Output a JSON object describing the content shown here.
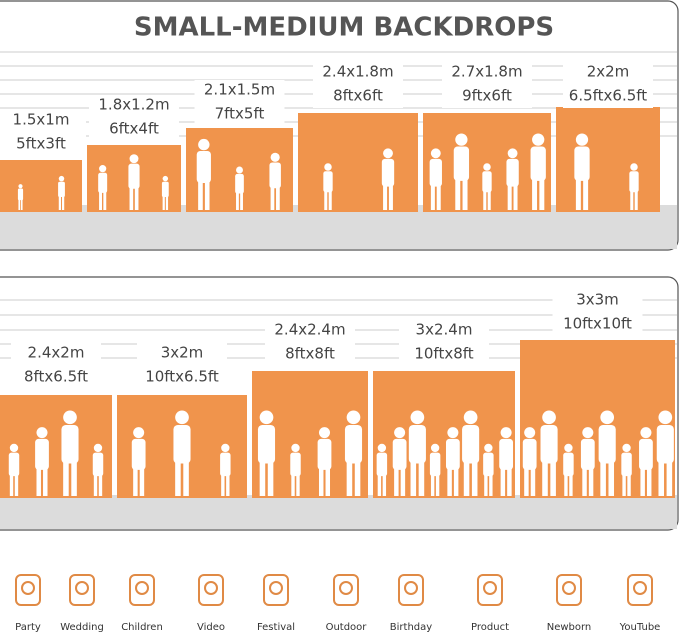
{
  "title": "SMALL-MEDIUM BACKDROPS",
  "panels": [
    {
      "backdrops": [
        {
          "metric": "1.5x1m",
          "imperial": "5ftx3ft"
        },
        {
          "metric": "1.8x1.2m",
          "imperial": "6ftx4ft"
        },
        {
          "metric": "2.1x1.5m",
          "imperial": "7ftx5ft"
        },
        {
          "metric": "2.4x1.8m",
          "imperial": "8ftx6ft"
        },
        {
          "metric": "2.7x1.8m",
          "imperial": "9ftx6ft"
        },
        {
          "metric": "2x2m",
          "imperial": "6.5ftx6.5ft"
        }
      ]
    },
    {
      "backdrops": [
        {
          "metric": "2.4x2m",
          "imperial": "8ftx6.5ft"
        },
        {
          "metric": "3x2m",
          "imperial": "10ftx6.5ft"
        },
        {
          "metric": "2.4x2.4m",
          "imperial": "8ftx8ft"
        },
        {
          "metric": "3x2.4m",
          "imperial": "10ftx8ft"
        },
        {
          "metric": "3x3m",
          "imperial": "10ftx10ft"
        }
      ]
    }
  ],
  "icons": [
    {
      "label": "Party"
    },
    {
      "label": "Wedding"
    },
    {
      "label": "Children"
    },
    {
      "label": "Video"
    },
    {
      "label": "Festival"
    },
    {
      "label": "Outdoor"
    },
    {
      "label": "Birthday"
    },
    {
      "label": "Product"
    },
    {
      "label": "Newborn"
    },
    {
      "label": "YouTube"
    }
  ]
}
